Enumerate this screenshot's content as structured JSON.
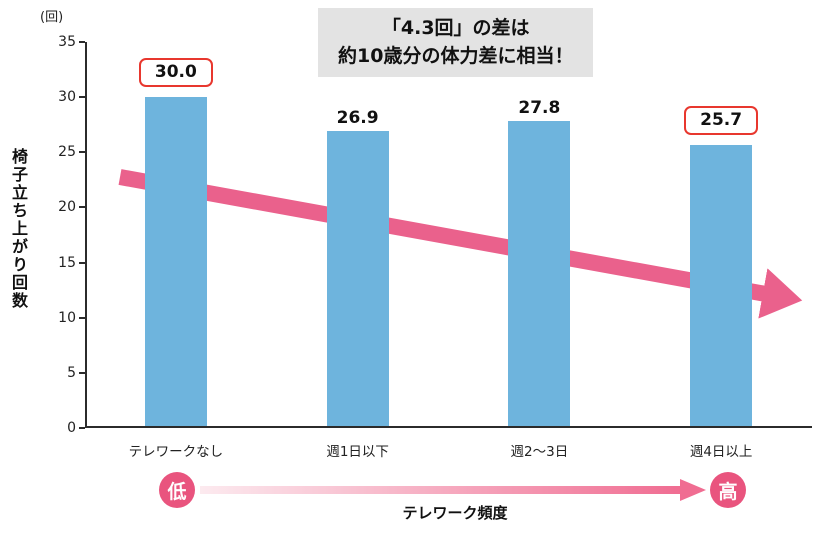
{
  "chart_data": {
    "type": "bar",
    "title": "",
    "categories": [
      "テレワークなし",
      "週1日以下",
      "週2〜3日",
      "週4日以上"
    ],
    "values": [
      30.0,
      26.9,
      27.8,
      25.7
    ],
    "value_labels": [
      "30.0",
      "26.9",
      "27.8",
      "25.7"
    ],
    "highlighted": [
      true,
      false,
      false,
      true
    ],
    "xlabel": "テレワーク頻度",
    "ylabel": "椅子立ち上がり回数",
    "y_unit": "(回)",
    "ylim": [
      0,
      35
    ],
    "yticks": [
      0,
      5,
      10,
      15,
      20,
      25,
      30,
      35
    ],
    "grid": false,
    "legend": "none",
    "bar_color": "#6eb4dd",
    "highlight_border_color": "#e8372e",
    "trend_arrow_color": "#ea618c",
    "trend_arrow": {
      "from_value": 22.8,
      "to_value": 11.5,
      "note": "decreasing trend across categories"
    }
  },
  "annotation": {
    "line1": "「4.3回」の差は",
    "line2": "約10歳分の体力差に相当！",
    "bg_color": "#e3e3e3"
  },
  "frequency_axis": {
    "low_label": "低",
    "high_label": "高",
    "title": "テレワーク頻度",
    "badge_color": "#e9547e",
    "gradient_start": "#fceaef",
    "gradient_end": "#f06d92"
  }
}
